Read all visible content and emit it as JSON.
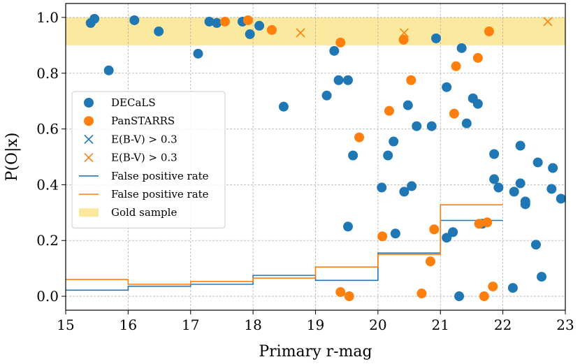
{
  "chart_data": {
    "type": "scatter",
    "xlabel": "Primary r-mag",
    "ylabel": "P(O|x)",
    "xlim": [
      15,
      23
    ],
    "ylim": [
      -0.05,
      1.05
    ],
    "xticks": [
      15,
      16,
      17,
      18,
      19,
      20,
      21,
      22,
      23
    ],
    "yticks": [
      0.0,
      0.2,
      0.4,
      0.6,
      0.8,
      1.0
    ],
    "grid": true,
    "legend_position": "center-left",
    "colors": {
      "decals": "#1f77b4",
      "panstarrs": "#ff7f0e",
      "gold": "#fbe89a"
    },
    "gold_band": {
      "y_range": [
        0.9,
        1.0
      ],
      "label": "Gold sample"
    },
    "series": [
      {
        "name": "DECaLS",
        "marker": "circle",
        "color": "#1f77b4",
        "points": [
          [
            15.4,
            0.98
          ],
          [
            15.46,
            0.995
          ],
          [
            15.69,
            0.81
          ],
          [
            16.1,
            0.99
          ],
          [
            16.49,
            0.95
          ],
          [
            17.12,
            0.87
          ],
          [
            17.3,
            0.985
          ],
          [
            17.42,
            0.98
          ],
          [
            17.83,
            0.985
          ],
          [
            17.95,
            0.94
          ],
          [
            18.1,
            0.97
          ],
          [
            18.49,
            0.68
          ],
          [
            19.18,
            0.72
          ],
          [
            19.3,
            0.88
          ],
          [
            19.37,
            0.775
          ],
          [
            19.52,
            0.775
          ],
          [
            19.52,
            0.25
          ],
          [
            19.6,
            0.505
          ],
          [
            20.06,
            0.39
          ],
          [
            20.16,
            0.505
          ],
          [
            20.25,
            0.555
          ],
          [
            20.28,
            0.225
          ],
          [
            20.42,
            0.375
          ],
          [
            20.48,
            0.685
          ],
          [
            20.54,
            0.395
          ],
          [
            20.62,
            0.61
          ],
          [
            20.86,
            0.61
          ],
          [
            20.93,
            0.925
          ],
          [
            21.1,
            0.75
          ],
          [
            21.1,
            0.21
          ],
          [
            21.2,
            0.23
          ],
          [
            21.3,
            0.0
          ],
          [
            21.34,
            0.89
          ],
          [
            21.42,
            0.62
          ],
          [
            21.52,
            0.71
          ],
          [
            21.6,
            0.69
          ],
          [
            21.67,
            0.26
          ],
          [
            21.86,
            0.51
          ],
          [
            21.86,
            0.42
          ],
          [
            21.93,
            0.39
          ],
          [
            22.16,
            0.03
          ],
          [
            22.18,
            0.375
          ],
          [
            22.28,
            0.54
          ],
          [
            22.28,
            0.405
          ],
          [
            22.36,
            0.34
          ],
          [
            22.36,
            0.33
          ],
          [
            22.53,
            0.185
          ],
          [
            22.56,
            0.48
          ],
          [
            22.62,
            0.07
          ],
          [
            22.78,
            0.385
          ],
          [
            22.8,
            0.46
          ],
          [
            22.93,
            0.35
          ]
        ]
      },
      {
        "name": "PanSTARRS",
        "marker": "circle",
        "color": "#ff7f0e",
        "points": [
          [
            17.55,
            0.985
          ],
          [
            17.92,
            0.99
          ],
          [
            18.3,
            0.955
          ],
          [
            19.4,
            0.91
          ],
          [
            19.4,
            0.015
          ],
          [
            19.54,
            0.0
          ],
          [
            19.7,
            0.57
          ],
          [
            20.07,
            0.215
          ],
          [
            20.18,
            0.665
          ],
          [
            20.41,
            0.92
          ],
          [
            20.53,
            0.775
          ],
          [
            20.7,
            0.01
          ],
          [
            20.84,
            0.125
          ],
          [
            20.9,
            0.24
          ],
          [
            21.22,
            0.655
          ],
          [
            21.25,
            0.825
          ],
          [
            21.6,
            0.855
          ],
          [
            21.62,
            0.26
          ],
          [
            21.7,
            0.0
          ],
          [
            21.75,
            0.265
          ],
          [
            21.78,
            0.95
          ],
          [
            21.84,
            0.035
          ]
        ]
      },
      {
        "name": "E(B-V) > 0.3",
        "marker": "x",
        "color": "#1f77b4",
        "points": []
      },
      {
        "name": "E(B-V) > 0.3",
        "marker": "x",
        "color": "#ff7f0e",
        "points": [
          [
            18.76,
            0.945
          ],
          [
            20.42,
            0.945
          ],
          [
            22.72,
            0.985
          ]
        ]
      },
      {
        "name": "False positive rate",
        "type": "step",
        "color": "#1f77b4",
        "bin_edges": [
          15,
          16,
          17,
          18,
          19,
          20,
          21,
          22
        ],
        "values": [
          0.022,
          0.036,
          0.043,
          0.075,
          0.057,
          0.155,
          0.272
        ]
      },
      {
        "name": "False positive rate",
        "type": "step",
        "color": "#ff7f0e",
        "bin_edges": [
          15,
          16,
          17,
          18,
          19,
          20,
          21,
          22
        ],
        "values": [
          0.06,
          0.043,
          0.053,
          0.065,
          0.105,
          0.15,
          0.328
        ]
      }
    ]
  }
}
